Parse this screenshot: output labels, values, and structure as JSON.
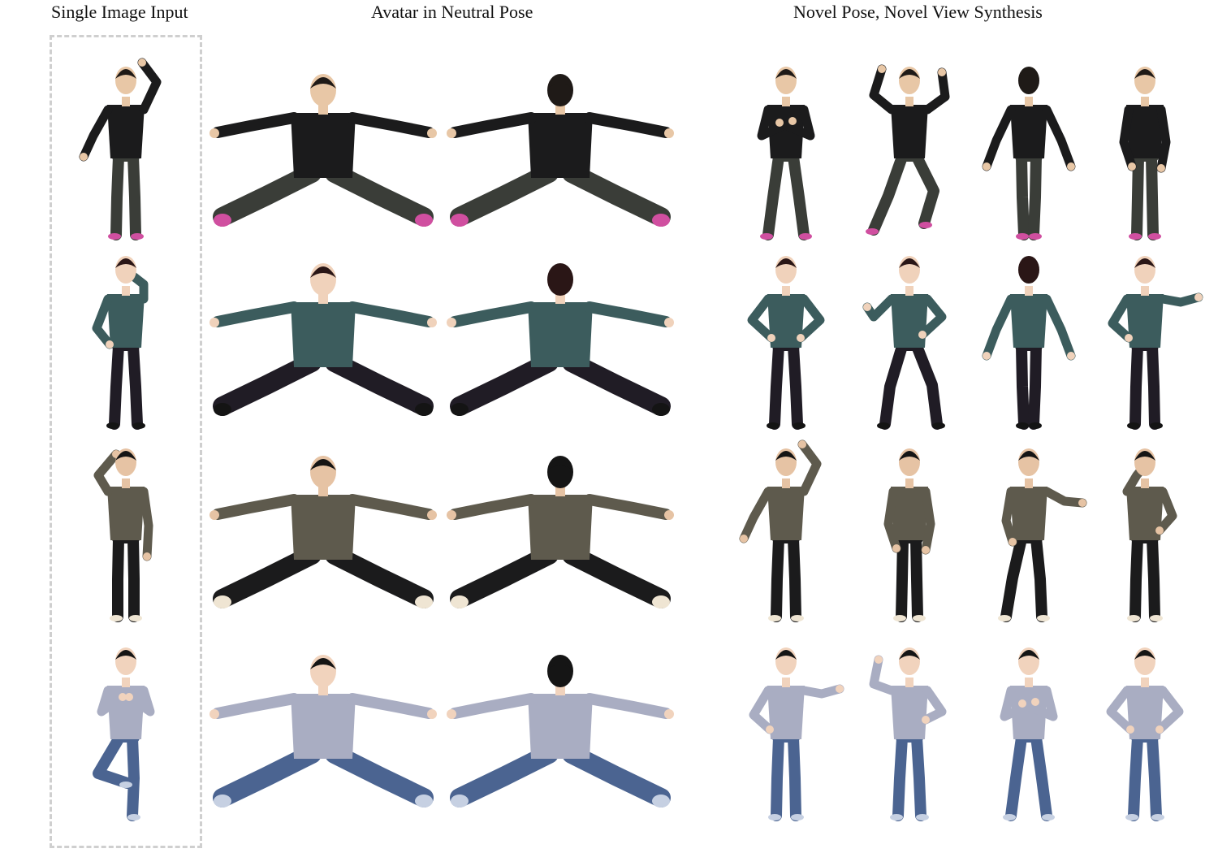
{
  "headers": {
    "single_input": "Single Image Input",
    "neutral_pose": "Avatar in Neutral Pose",
    "novel_synthesis": "Novel Pose, Novel View Synthesis"
  },
  "subjects": [
    {
      "name": "subject-1",
      "colors": {
        "skin": "#e8c7a6",
        "hair": "#1f1a17",
        "top": "#1b1b1c",
        "bottom": "#3a3d38",
        "shoe": "#d04fa0"
      },
      "views": [
        {
          "pose": "raised-arm"
        },
        {
          "pose": "tpose-front"
        },
        {
          "pose": "tpose-back"
        },
        {
          "pose": "arms-cross"
        },
        {
          "pose": "dance-up"
        },
        {
          "pose": "back-stand"
        },
        {
          "pose": "side-stand"
        }
      ]
    },
    {
      "name": "subject-2",
      "colors": {
        "skin": "#f0d2bb",
        "hair": "#2a1616",
        "top": "#3c5c5d",
        "bottom": "#201c25",
        "shoe": "#141414"
      },
      "views": [
        {
          "pose": "hand-chin"
        },
        {
          "pose": "tpose-front"
        },
        {
          "pose": "tpose-back"
        },
        {
          "pose": "hands-hips"
        },
        {
          "pose": "dance-low"
        },
        {
          "pose": "back-stand"
        },
        {
          "pose": "arm-out"
        }
      ]
    },
    {
      "name": "subject-3",
      "colors": {
        "skin": "#e6c3a4",
        "hair": "#151515",
        "top": "#5e5a4d",
        "bottom": "#1b1b1c",
        "shoe": "#efe5d3"
      },
      "views": [
        {
          "pose": "hand-head"
        },
        {
          "pose": "tpose-front"
        },
        {
          "pose": "tpose-back"
        },
        {
          "pose": "raised-arm"
        },
        {
          "pose": "side-stand"
        },
        {
          "pose": "punch"
        },
        {
          "pose": "hand-face"
        }
      ]
    },
    {
      "name": "subject-4",
      "colors": {
        "skin": "#f1d3bd",
        "hair": "#151515",
        "top": "#a9adc2",
        "bottom": "#4b6491",
        "shoe": "#c6d0e2"
      },
      "views": [
        {
          "pose": "tree-pose"
        },
        {
          "pose": "tpose-front"
        },
        {
          "pose": "tpose-back"
        },
        {
          "pose": "arm-out"
        },
        {
          "pose": "flex"
        },
        {
          "pose": "arms-cross"
        },
        {
          "pose": "hands-hips"
        }
      ]
    }
  ]
}
